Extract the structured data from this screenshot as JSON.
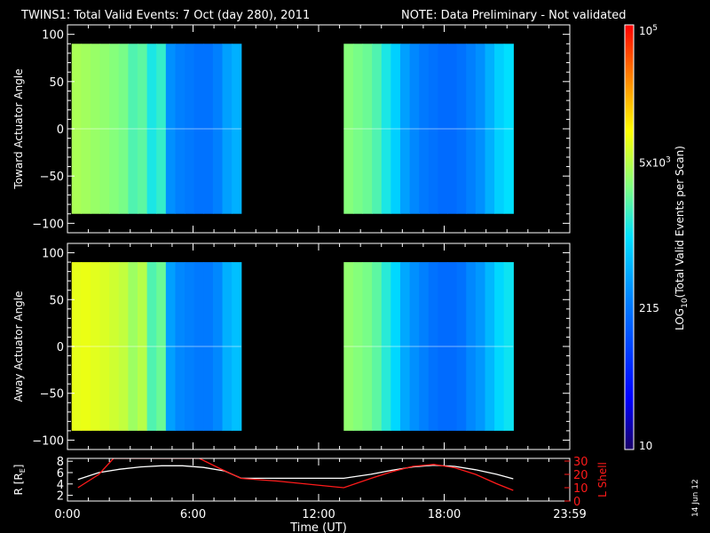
{
  "header": {
    "title": "TWINS1: Total Valid Events:  7 Oct (day 280), 2011",
    "note": "NOTE: Data Preliminary - Not validated",
    "note_color": "#ff1a1a"
  },
  "datestamp": "14 Jun 12",
  "chart_data": [
    {
      "type": "heatmap",
      "ylabel": "Toward Actuator Angle",
      "ylim": [
        -110,
        110
      ],
      "yticks": [
        "100",
        "50",
        "0",
        "−50",
        "−100"
      ],
      "y_range": [
        -90,
        90
      ],
      "x_range_hours": [
        0,
        24
      ],
      "data_intervals_hours": [
        [
          0.2,
          8.3
        ],
        [
          13.2,
          21.3
        ]
      ],
      "x_coverage_to": "23:59",
      "colorscale": "rainbow",
      "profile_log10_by_interval": [
        [
          3.65,
          3.62,
          3.58,
          3.55,
          3.5,
          3.45,
          3.3,
          3.35,
          3.1,
          3.2,
          2.5,
          2.4,
          2.35,
          2.3,
          2.3,
          2.4,
          2.6,
          2.7
        ],
        [
          3.5,
          3.45,
          3.4,
          3.3,
          3.1,
          2.9,
          2.6,
          2.45,
          2.35,
          2.3,
          2.25,
          2.25,
          2.3,
          2.4,
          2.5,
          2.7,
          2.9,
          3.0
        ]
      ]
    },
    {
      "type": "heatmap",
      "ylabel": "Away Actuator Angle",
      "ylim": [
        -110,
        110
      ],
      "yticks": [
        "100",
        "50",
        "0",
        "−50",
        "−100"
      ],
      "y_range": [
        -90,
        90
      ],
      "x_range_hours": [
        0,
        24
      ],
      "data_intervals_hours": [
        [
          0.2,
          8.3
        ],
        [
          13.2,
          21.3
        ]
      ],
      "colorscale": "rainbow",
      "profile_log10_by_interval": [
        [
          3.9,
          3.92,
          3.88,
          3.85,
          3.8,
          3.75,
          3.6,
          3.7,
          3.3,
          3.4,
          2.6,
          2.45,
          2.4,
          2.35,
          2.35,
          2.45,
          2.7,
          2.8
        ],
        [
          3.55,
          3.5,
          3.45,
          3.35,
          3.15,
          2.95,
          2.65,
          2.5,
          2.4,
          2.3,
          2.25,
          2.25,
          2.3,
          2.45,
          2.55,
          2.75,
          2.95,
          3.05
        ]
      ]
    },
    {
      "type": "line",
      "ylabel": "R [R",
      "ylabel_sub": "E",
      "ylabel_end": "]",
      "ylim": [
        1,
        8.5
      ],
      "yticks": [
        "8",
        "6",
        "4",
        "2"
      ],
      "ylabel2": "L Shell",
      "ylim2": [
        0,
        32
      ],
      "yticks2": [
        "30",
        "20",
        "10",
        "0"
      ],
      "xlabel": "Time (UT)",
      "xticks": [
        "0:00",
        "6:00",
        "12:00",
        "18:00",
        "23:59"
      ],
      "x_range_hours": [
        0,
        24
      ],
      "series": [
        {
          "color": "#ffffff",
          "axis": "left",
          "x": [
            0.5,
            1.5,
            2.5,
            3.5,
            4.5,
            5.5,
            6.5,
            7.5,
            8.3,
            10,
            12,
            13.2,
            14.5,
            15.5,
            16.5,
            17.5,
            18.5,
            19.5,
            20.5,
            21.3
          ],
          "y": [
            4.8,
            6.0,
            6.6,
            7.0,
            7.2,
            7.2,
            6.9,
            6.3,
            5.0,
            5.0,
            5.0,
            5.0,
            5.7,
            6.4,
            7.0,
            7.3,
            7.1,
            6.5,
            5.7,
            4.9
          ]
        },
        {
          "color": "#ff1a1a",
          "axis": "right",
          "x": [
            0.5,
            1.5,
            2.2,
            6.3,
            7.2,
            8.3,
            10,
            13.2,
            14.5,
            15.5,
            16.5,
            17.5,
            18.5,
            19.5,
            20.5,
            21.3
          ],
          "y": [
            10,
            20,
            32,
            32,
            25,
            17,
            15,
            10,
            17,
            22,
            26,
            27.5,
            25,
            20,
            13,
            8
          ]
        }
      ]
    }
  ],
  "colorbar": {
    "label_pre": "LOG",
    "label_sub": "10",
    "label_post": "(Total Valid  Events per Scan)",
    "range_log10": [
      1,
      5
    ],
    "top_base": "10",
    "top_exp": "5",
    "mid_base": "5x10",
    "mid_exp": "3",
    "mid_log10": 3.7,
    "low": "215",
    "low_log10": 2.33,
    "bottom": "10"
  }
}
